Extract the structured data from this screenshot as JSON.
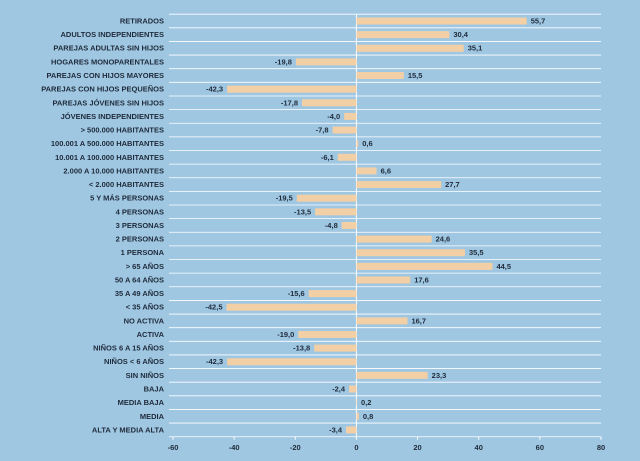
{
  "chart_data": {
    "type": "hbar",
    "categories": [
      "RETIRADOS",
      "ADULTOS INDEPENDIENTES",
      "PAREJAS ADULTAS SIN HIJOS",
      "HOGARES MONOPARENTALES",
      "PAREJAS CON HIJOS MAYORES",
      "PAREJAS CON HIJOS PEQUEÑOS",
      "PAREJAS JÓVENES SIN HIJOS",
      "JÓVENES INDEPENDIENTES",
      "> 500.000 HABITANTES",
      "100.001 A 500.000 HABITANTES",
      "10.001 A 100.000 HABITANTES",
      "2.000 A 10.000 HABITANTES",
      "< 2.000 HABITANTES",
      "5 Y MÁS PERSONAS",
      "4 PERSONAS",
      "3 PERSONAS",
      "2 PERSONAS",
      "1 PERSONA",
      "> 65 AÑOS",
      "50 A 64 AÑOS",
      "35 A 49 AÑOS",
      "< 35 AÑOS",
      "NO ACTIVA",
      "ACTIVA",
      "NIÑOS 6 A 15 AÑOS",
      "NIÑOS < 6 AÑOS",
      "SIN NIÑOS",
      "BAJA",
      "MEDIA BAJA",
      "MEDIA",
      "ALTA Y MEDIA ALTA"
    ],
    "values": [
      55.7,
      30.4,
      35.1,
      -19.8,
      15.5,
      -42.3,
      -17.8,
      -4.0,
      -7.8,
      0.6,
      -6.1,
      6.6,
      27.7,
      -19.5,
      -13.5,
      -4.8,
      24.6,
      35.5,
      44.5,
      17.6,
      -15.6,
      -42.5,
      16.7,
      -19.0,
      -13.8,
      -42.3,
      23.3,
      -2.4,
      0.2,
      0.8,
      -3.4
    ],
    "value_labels": [
      "55,7",
      "30,4",
      "35,1",
      "-19,8",
      "15,5",
      "-42,3",
      "-17,8",
      "-4,0",
      "-7,8",
      "0,6",
      "-6,1",
      "6,6",
      "27,7",
      "-19,5",
      "-13,5",
      "-4,8",
      "24,6",
      "35,5",
      "44,5",
      "17,6",
      "-15,6",
      "-42,5",
      "16,7",
      "-19,0",
      "-13,8",
      "-42,3",
      "23,3",
      "-2,4",
      "0,2",
      "0,8",
      "-3,4"
    ],
    "color": "#f3cfa5",
    "xlim": [
      -60,
      80
    ],
    "xticks": [
      -60,
      -40,
      -20,
      0,
      20,
      40,
      60,
      80
    ]
  }
}
